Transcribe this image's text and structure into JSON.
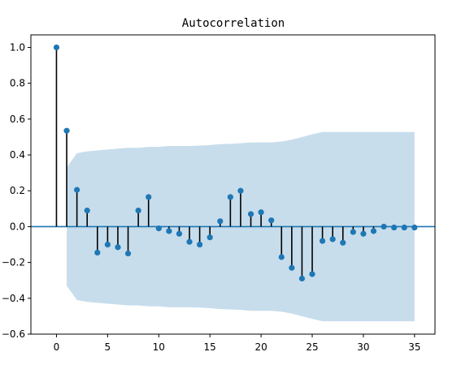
{
  "chart_data": {
    "type": "stem",
    "title": "Autocorrelation",
    "xlabel": "",
    "ylabel": "",
    "xlim": [
      -2.5,
      37
    ],
    "ylim": [
      -0.6,
      1.07
    ],
    "xticks": [
      0,
      5,
      10,
      15,
      20,
      25,
      30,
      35
    ],
    "yticks": [
      -0.6,
      -0.4,
      -0.2,
      0.0,
      0.2,
      0.4,
      0.6,
      0.8,
      1.0
    ],
    "xtick_labels": [
      "0",
      "5",
      "10",
      "15",
      "20",
      "25",
      "30",
      "35"
    ],
    "ytick_labels": [
      "−0.6",
      "−0.4",
      "−0.2",
      "0.0",
      "0.2",
      "0.4",
      "0.6",
      "0.8",
      "1.0"
    ],
    "lags": [
      0,
      1,
      2,
      3,
      4,
      5,
      6,
      7,
      8,
      9,
      10,
      11,
      12,
      13,
      14,
      15,
      16,
      17,
      18,
      19,
      20,
      21,
      22,
      23,
      24,
      25,
      26,
      27,
      28,
      29,
      30,
      31,
      32,
      33,
      34,
      35
    ],
    "values": [
      1.0,
      0.535,
      0.205,
      0.09,
      -0.145,
      -0.1,
      -0.115,
      -0.15,
      0.09,
      0.165,
      -0.01,
      -0.025,
      -0.04,
      -0.085,
      -0.1,
      -0.06,
      0.03,
      0.165,
      0.2,
      0.07,
      0.08,
      0.035,
      -0.17,
      -0.23,
      -0.29,
      -0.265,
      -0.08,
      -0.07,
      -0.09,
      -0.03,
      -0.04,
      -0.025,
      0.0,
      -0.005,
      -0.005,
      -0.005
    ],
    "confidence_interval": {
      "lags": [
        1,
        2,
        3,
        4,
        5,
        6,
        7,
        8,
        9,
        10,
        11,
        12,
        13,
        14,
        15,
        16,
        17,
        18,
        19,
        20,
        21,
        22,
        23,
        24,
        25,
        26,
        27,
        28,
        29,
        30,
        31,
        32,
        33,
        34,
        35
      ],
      "upper": [
        0.33,
        0.41,
        0.42,
        0.425,
        0.43,
        0.435,
        0.44,
        0.44,
        0.445,
        0.445,
        0.45,
        0.45,
        0.45,
        0.452,
        0.455,
        0.46,
        0.462,
        0.465,
        0.47,
        0.47,
        0.47,
        0.475,
        0.485,
        0.5,
        0.515,
        0.528,
        0.528,
        0.528,
        0.528,
        0.528,
        0.528,
        0.528,
        0.528,
        0.528,
        0.528
      ]
    },
    "grid": false,
    "legend": "none",
    "colors": {
      "marker": "#1f77b4",
      "baseline": "#1f77b4",
      "stem": "#000000",
      "confidence_band": "#1f77b4"
    }
  }
}
